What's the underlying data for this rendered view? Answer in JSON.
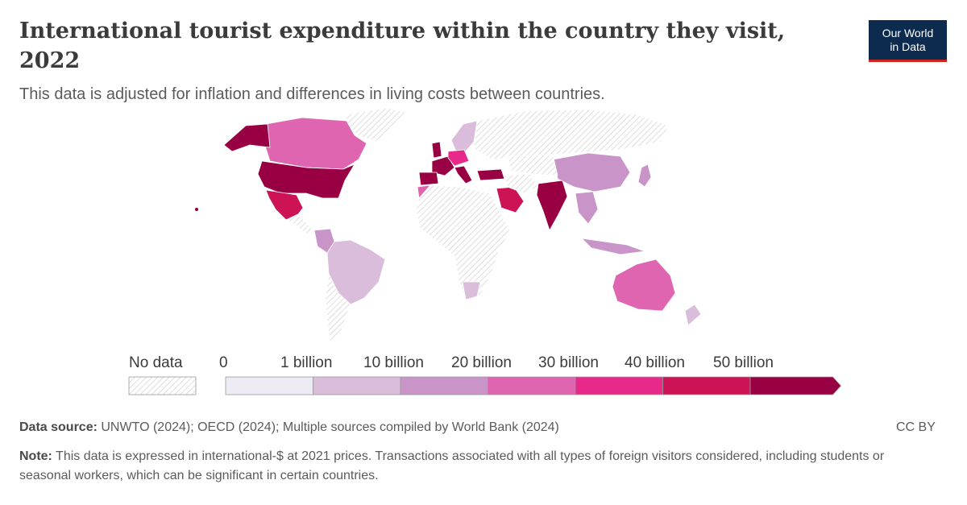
{
  "header": {
    "title": "International tourist expenditure within the country they visit, 2022",
    "subtitle": "This data is adjusted for inflation and differences in living costs between countries.",
    "logo_line1": "Our World",
    "logo_line2": "in Data"
  },
  "legend": {
    "no_data_label": "No data",
    "bins": [
      {
        "label": "0",
        "color": "#efebf4"
      },
      {
        "label": "1 billion",
        "color": "#d9bddb"
      },
      {
        "label": "10 billion",
        "color": "#c994c7"
      },
      {
        "label": "20 billion",
        "color": "#df65b0"
      },
      {
        "label": "30 billion",
        "color": "#e7298a"
      },
      {
        "label": "40 billion",
        "color": "#ce1256"
      },
      {
        "label": "50 billion",
        "color": "#980043"
      }
    ]
  },
  "map_data": {
    "type": "choropleth",
    "regions": [
      {
        "name": "United States",
        "bin": "50+ billion",
        "color": "#980043"
      },
      {
        "name": "Canada",
        "bin": "20–30 billion",
        "color": "#df65b0"
      },
      {
        "name": "Mexico",
        "bin": "40–50 billion",
        "color": "#ce1256"
      },
      {
        "name": "Brazil",
        "bin": "1–10 billion",
        "color": "#d9bddb"
      },
      {
        "name": "Colombia",
        "bin": "10–20 billion",
        "color": "#c994c7"
      },
      {
        "name": "Spain",
        "bin": "50+ billion",
        "color": "#980043"
      },
      {
        "name": "France",
        "bin": "50+ billion",
        "color": "#980043"
      },
      {
        "name": "United Kingdom",
        "bin": "50+ billion",
        "color": "#980043"
      },
      {
        "name": "Italy",
        "bin": "50+ billion",
        "color": "#980043"
      },
      {
        "name": "Germany",
        "bin": "30–40 billion",
        "color": "#e7298a"
      },
      {
        "name": "Turkey",
        "bin": "50+ billion",
        "color": "#980043"
      },
      {
        "name": "Saudi Arabia",
        "bin": "40–50 billion",
        "color": "#ce1256"
      },
      {
        "name": "India",
        "bin": "50+ billion",
        "color": "#980043"
      },
      {
        "name": "China",
        "bin": "10–20 billion",
        "color": "#c994c7"
      },
      {
        "name": "Japan",
        "bin": "10–20 billion",
        "color": "#c994c7"
      },
      {
        "name": "Australia",
        "bin": "20–30 billion",
        "color": "#df65b0"
      },
      {
        "name": "Morocco",
        "bin": "20–30 billion",
        "color": "#df65b0"
      },
      {
        "name": "South Africa",
        "bin": "1–10 billion",
        "color": "#d9bddb"
      },
      {
        "name": "Russia",
        "bin": "No data",
        "color": "hatched"
      }
    ]
  },
  "footer": {
    "source_label": "Data source:",
    "source_text": "UNWTO (2024); OECD (2024); Multiple sources compiled by World Bank (2024)",
    "license": "CC BY",
    "note_label": "Note:",
    "note_text": "This data is expressed in international-$ at 2021 prices. Transactions associated with all types of foreign visitors considered, including students or seasonal workers, which can be significant in certain countries."
  }
}
